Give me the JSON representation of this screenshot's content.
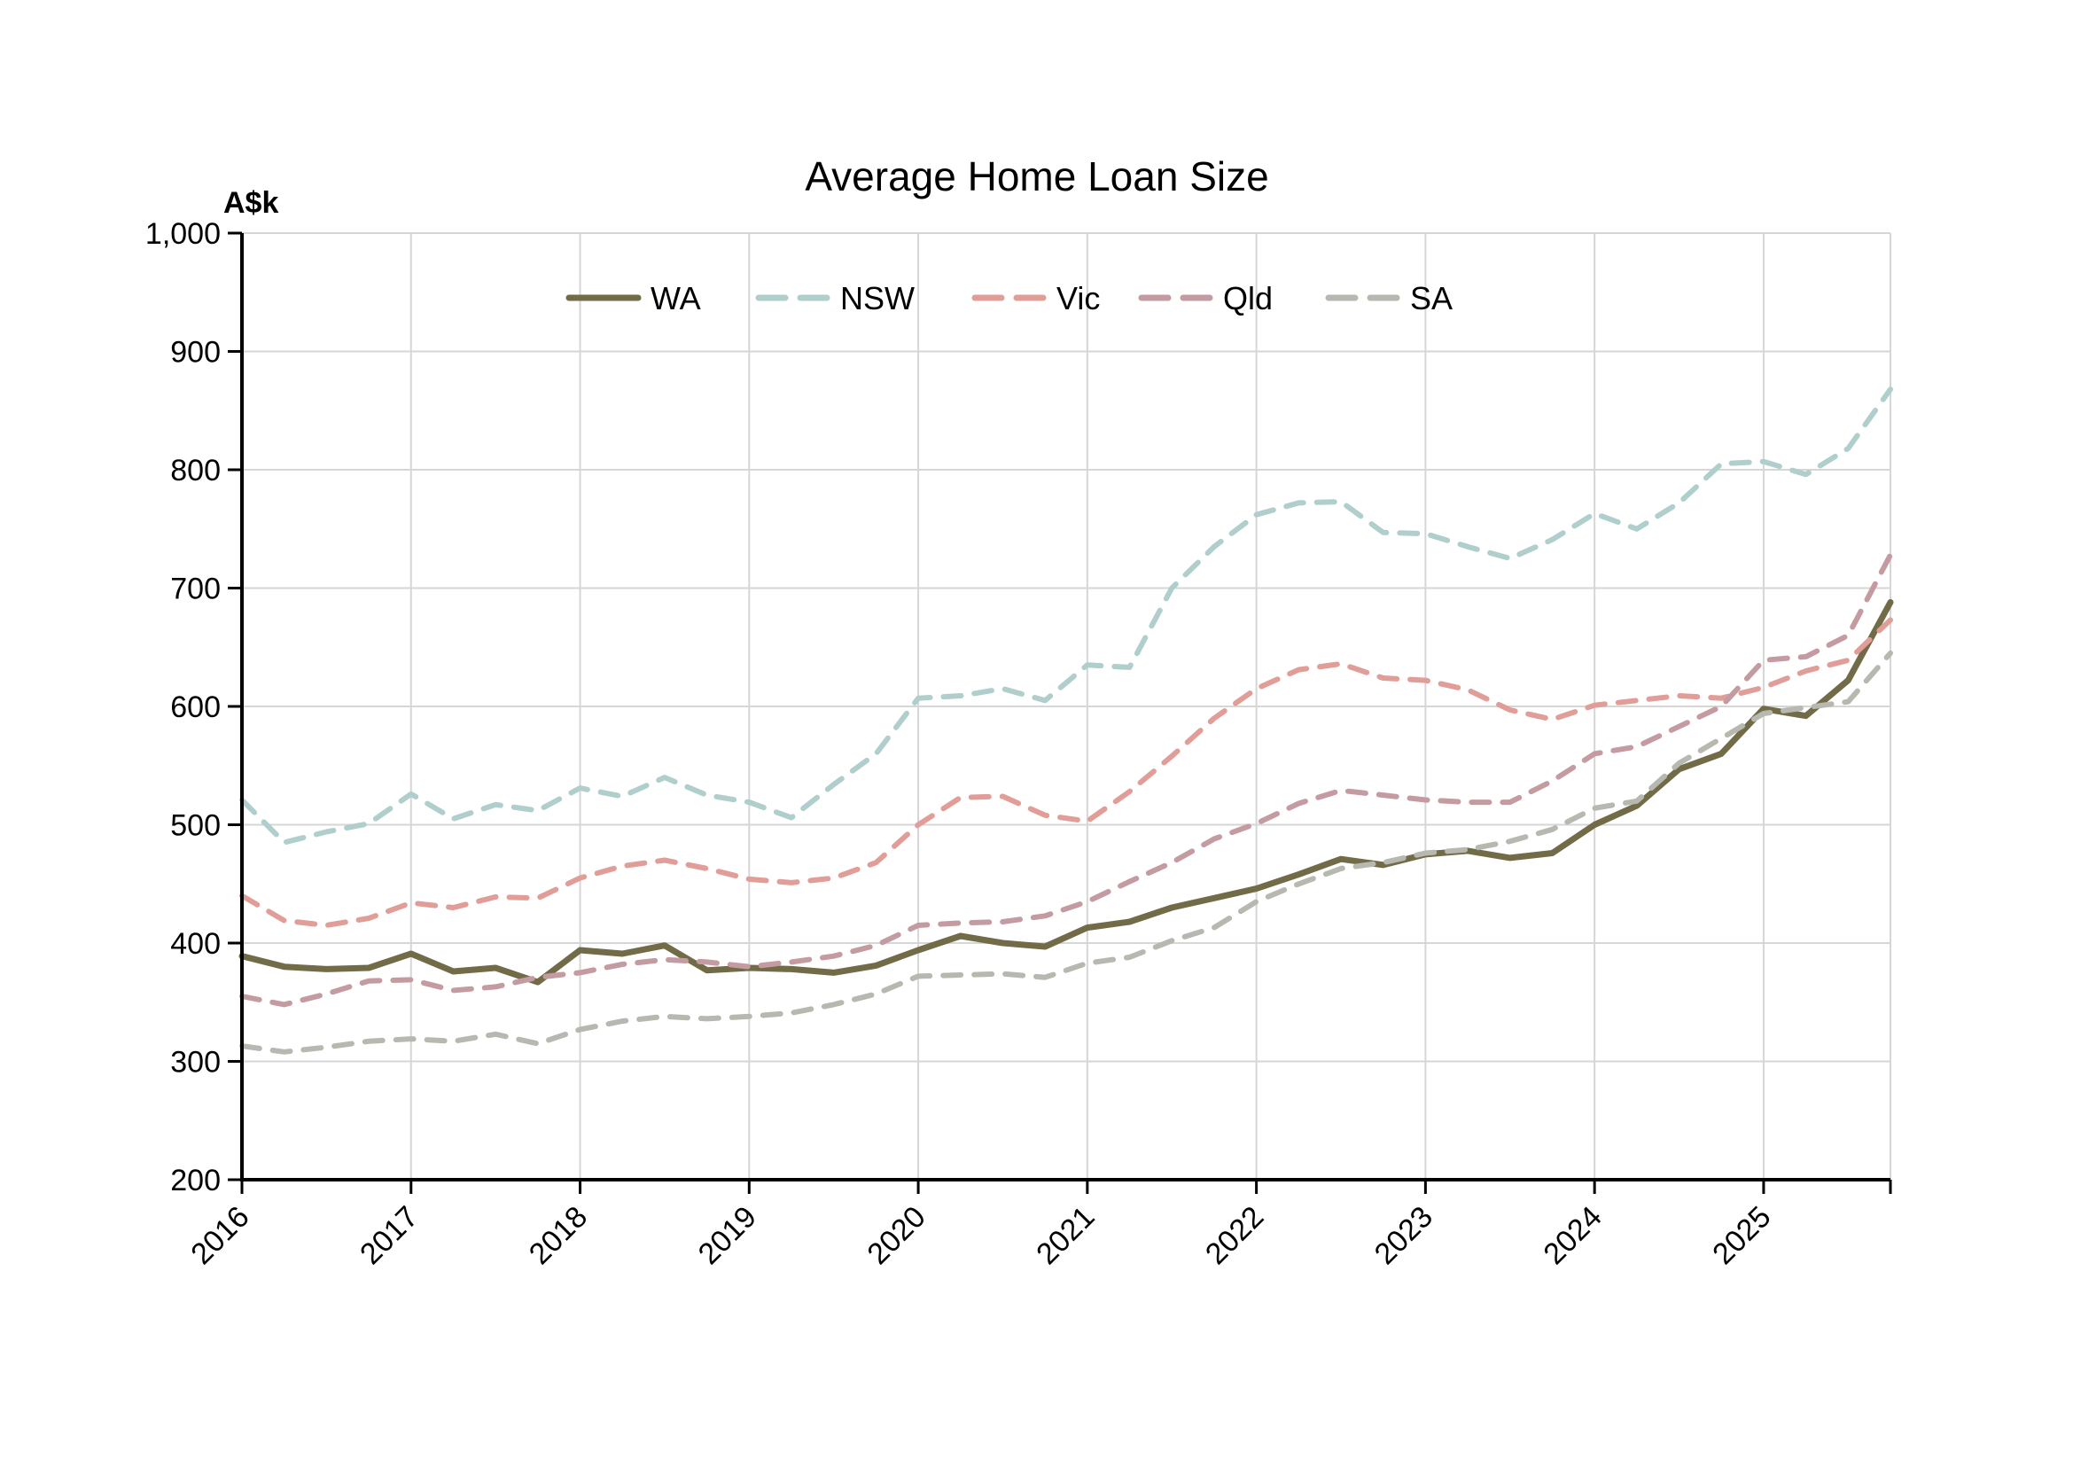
{
  "title": "Average Home Loan Size",
  "y_axis": {
    "unit_label": "A$k",
    "min": 200,
    "max": 1000,
    "tick_step": 100,
    "tick_labels": [
      "200",
      "300",
      "400",
      "500",
      "600",
      "700",
      "800",
      "900",
      "1,000"
    ]
  },
  "x_axis": {
    "year_labels": [
      "2016",
      "2017",
      "2018",
      "2019",
      "2020",
      "2021",
      "2022",
      "2023",
      "2024",
      "2025"
    ]
  },
  "legend": {
    "items": [
      "WA",
      "NSW",
      "Vic",
      "Qld",
      "SA"
    ]
  },
  "colors": {
    "axis": "#000000",
    "gridline": "#D6D6D6",
    "background": "#FFFFFF"
  },
  "chart_data": {
    "type": "line",
    "title": "Average Home Loan Size",
    "ylabel": "A$k",
    "ylim": [
      200,
      1000
    ],
    "grid": true,
    "legend_position": "top-center",
    "x": [
      "2016-Q1",
      "2016-Q2",
      "2016-Q3",
      "2016-Q4",
      "2017-Q1",
      "2017-Q2",
      "2017-Q3",
      "2017-Q4",
      "2018-Q1",
      "2018-Q2",
      "2018-Q3",
      "2018-Q4",
      "2019-Q1",
      "2019-Q2",
      "2019-Q3",
      "2019-Q4",
      "2020-Q1",
      "2020-Q2",
      "2020-Q3",
      "2020-Q4",
      "2021-Q1",
      "2021-Q2",
      "2021-Q3",
      "2021-Q4",
      "2022-Q1",
      "2022-Q2",
      "2022-Q3",
      "2022-Q4",
      "2023-Q1",
      "2023-Q2",
      "2023-Q3",
      "2023-Q4",
      "2024-Q1",
      "2024-Q2",
      "2024-Q3",
      "2024-Q4",
      "2025-Q1",
      "2025-Q2",
      "2025-Q3",
      "2025-Q4"
    ],
    "series": [
      {
        "name": "WA",
        "style": "solid",
        "color": "#726B48",
        "values": [
          389,
          380,
          378,
          379,
          391,
          376,
          379,
          367,
          394,
          391,
          398,
          377,
          379,
          378,
          375,
          381,
          394,
          406,
          400,
          397,
          413,
          418,
          430,
          438,
          446,
          458,
          471,
          466,
          475,
          478,
          472,
          476,
          500,
          516,
          547,
          560,
          598,
          592,
          622,
          688
        ]
      },
      {
        "name": "NSW",
        "style": "dashed",
        "color": "#AFCECC",
        "values": [
          521,
          485,
          494,
          501,
          526,
          505,
          517,
          512,
          531,
          524,
          540,
          525,
          519,
          506,
          534,
          560,
          607,
          609,
          615,
          605,
          635,
          633,
          700,
          735,
          762,
          772,
          773,
          747,
          746,
          735,
          725,
          741,
          763,
          750,
          772,
          805,
          807,
          796,
          818,
          868
        ]
      },
      {
        "name": "Vic",
        "style": "dashed",
        "color": "#E19D97",
        "values": [
          440,
          419,
          415,
          421,
          434,
          430,
          439,
          438,
          455,
          465,
          470,
          463,
          454,
          451,
          455,
          468,
          500,
          523,
          524,
          508,
          503,
          528,
          558,
          590,
          615,
          631,
          636,
          624,
          622,
          614,
          597,
          589,
          601,
          605,
          609,
          607,
          616,
          630,
          639,
          673
        ]
      },
      {
        "name": "Qld",
        "style": "dashed",
        "color": "#C49BA1",
        "values": [
          355,
          348,
          357,
          368,
          369,
          360,
          363,
          371,
          375,
          382,
          386,
          384,
          380,
          384,
          389,
          398,
          415,
          417,
          418,
          423,
          435,
          452,
          468,
          488,
          501,
          518,
          529,
          525,
          521,
          519,
          519,
          537,
          560,
          566,
          583,
          600,
          639,
          642,
          660,
          728
        ]
      },
      {
        "name": "SA",
        "style": "dashed",
        "color": "#B7B8B0",
        "values": [
          313,
          308,
          312,
          317,
          319,
          317,
          323,
          315,
          327,
          334,
          338,
          336,
          338,
          341,
          348,
          357,
          372,
          373,
          374,
          371,
          383,
          388,
          402,
          413,
          435,
          450,
          463,
          468,
          476,
          479,
          486,
          496,
          514,
          520,
          552,
          573,
          594,
          599,
          604,
          645
        ]
      }
    ]
  }
}
